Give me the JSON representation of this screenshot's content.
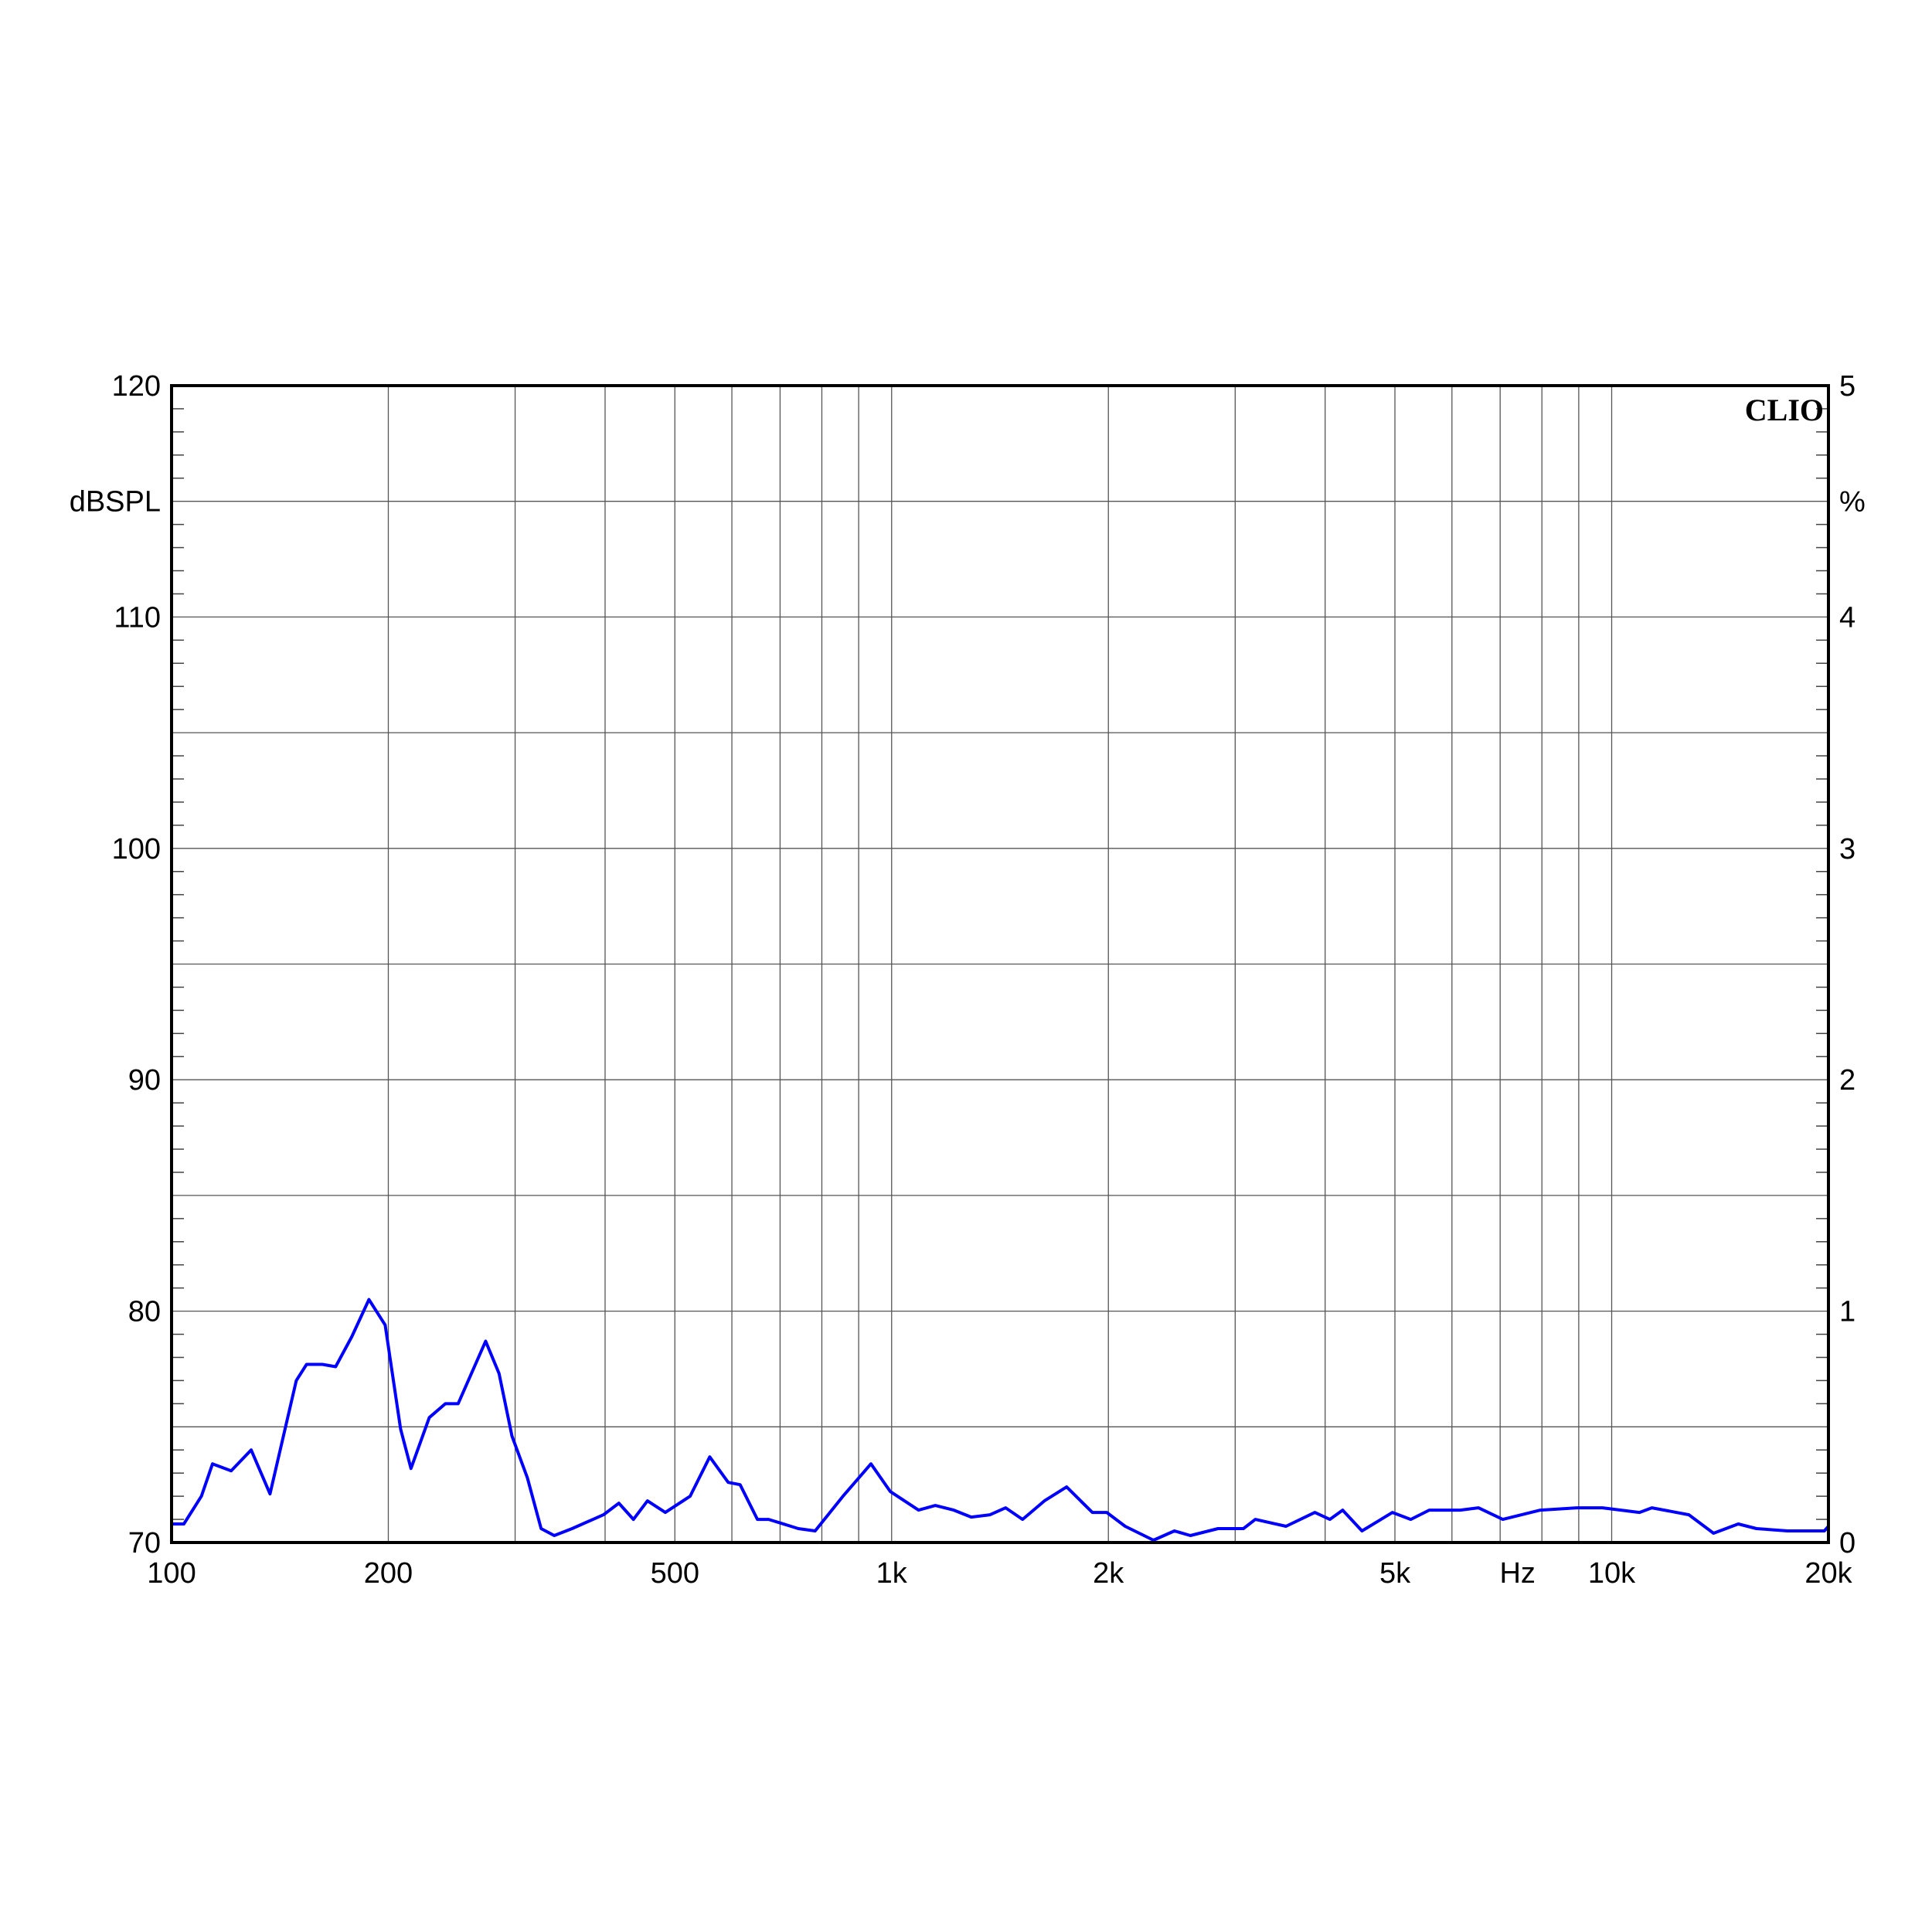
{
  "chart_data": {
    "type": "line",
    "title": "",
    "xlabel": "Hz",
    "ylabel": "dBSPL",
    "y2label": "%",
    "brand": "CLIO",
    "x_scale": "log",
    "xlim": [
      100,
      20000
    ],
    "ylim": [
      70,
      120
    ],
    "y2lim": [
      0,
      5
    ],
    "grid": true,
    "x_grid_values": [
      100,
      200,
      300,
      400,
      500,
      600,
      700,
      800,
      900,
      1000,
      2000,
      3000,
      4000,
      5000,
      6000,
      7000,
      8000,
      9000,
      10000,
      20000
    ],
    "x_ticks": [
      {
        "value": 100,
        "label": "100"
      },
      {
        "value": 200,
        "label": "200"
      },
      {
        "value": 500,
        "label": "500"
      },
      {
        "value": 1000,
        "label": "1k"
      },
      {
        "value": 2000,
        "label": "2k"
      },
      {
        "value": 5000,
        "label": "5k"
      },
      {
        "value": 10000,
        "label": "10k"
      },
      {
        "value": 20000,
        "label": "20k"
      }
    ],
    "y_ticks": [
      {
        "value": 70,
        "label": "70"
      },
      {
        "value": 80,
        "label": "80"
      },
      {
        "value": 90,
        "label": "90"
      },
      {
        "value": 100,
        "label": "100"
      },
      {
        "value": 110,
        "label": "110"
      },
      {
        "value": 120,
        "label": "120"
      }
    ],
    "y2_ticks": [
      {
        "value": 0,
        "label": "0"
      },
      {
        "value": 1,
        "label": "1"
      },
      {
        "value": 2,
        "label": "2"
      },
      {
        "value": 3,
        "label": "3"
      },
      {
        "value": 4,
        "label": "4"
      },
      {
        "value": 5,
        "label": "5"
      }
    ],
    "colors": {
      "series": "#0000ff",
      "axis": "#000000",
      "grid": "#555555"
    },
    "series": [
      {
        "x": [
          100,
          104,
          110,
          114,
          121,
          129,
          137,
          149,
          154,
          162,
          169,
          178,
          188,
          198,
          208,
          215,
          228,
          240,
          250,
          273,
          285,
          297,
          312,
          326,
          340,
          360,
          398,
          418,
          438,
          458,
          485,
          525,
          559,
          593,
          616,
          651,
          675,
          742,
          783,
          856,
          936,
          996,
          1090,
          1150,
          1220,
          1290,
          1370,
          1440,
          1520,
          1630,
          1750,
          1900,
          1990,
          2110,
          2310,
          2470,
          2600,
          2840,
          3080,
          3200,
          3530,
          3870,
          4060,
          4230,
          4500,
          4960,
          5260,
          5580,
          6160,
          6530,
          7060,
          7960,
          8960,
          9710,
          10930,
          11370,
          12800,
          13850,
          14990,
          15890,
          17550,
          19740,
          20000
        ],
        "y": [
          70.8,
          70.8,
          72.0,
          73.4,
          73.1,
          74.0,
          72.1,
          77.0,
          77.7,
          77.7,
          77.6,
          78.9,
          80.5,
          79.4,
          74.9,
          73.2,
          75.4,
          76.0,
          76.0,
          78.7,
          77.3,
          74.6,
          72.8,
          70.6,
          70.3,
          70.6,
          71.2,
          71.7,
          71.0,
          71.8,
          71.3,
          72.0,
          73.7,
          72.6,
          72.5,
          71.0,
          71.0,
          70.6,
          70.5,
          72.0,
          73.4,
          72.2,
          71.4,
          71.6,
          71.4,
          71.1,
          71.2,
          71.5,
          71.0,
          71.8,
          72.4,
          71.3,
          71.3,
          70.7,
          70.1,
          70.5,
          70.3,
          70.6,
          70.6,
          71.0,
          70.7,
          71.3,
          71.0,
          71.4,
          70.5,
          71.3,
          71.0,
          71.4,
          71.4,
          71.5,
          71.0,
          71.4,
          71.5,
          71.5,
          71.3,
          71.5,
          71.2,
          70.4,
          70.8,
          70.6,
          70.5,
          70.5,
          70.7
        ]
      }
    ]
  }
}
